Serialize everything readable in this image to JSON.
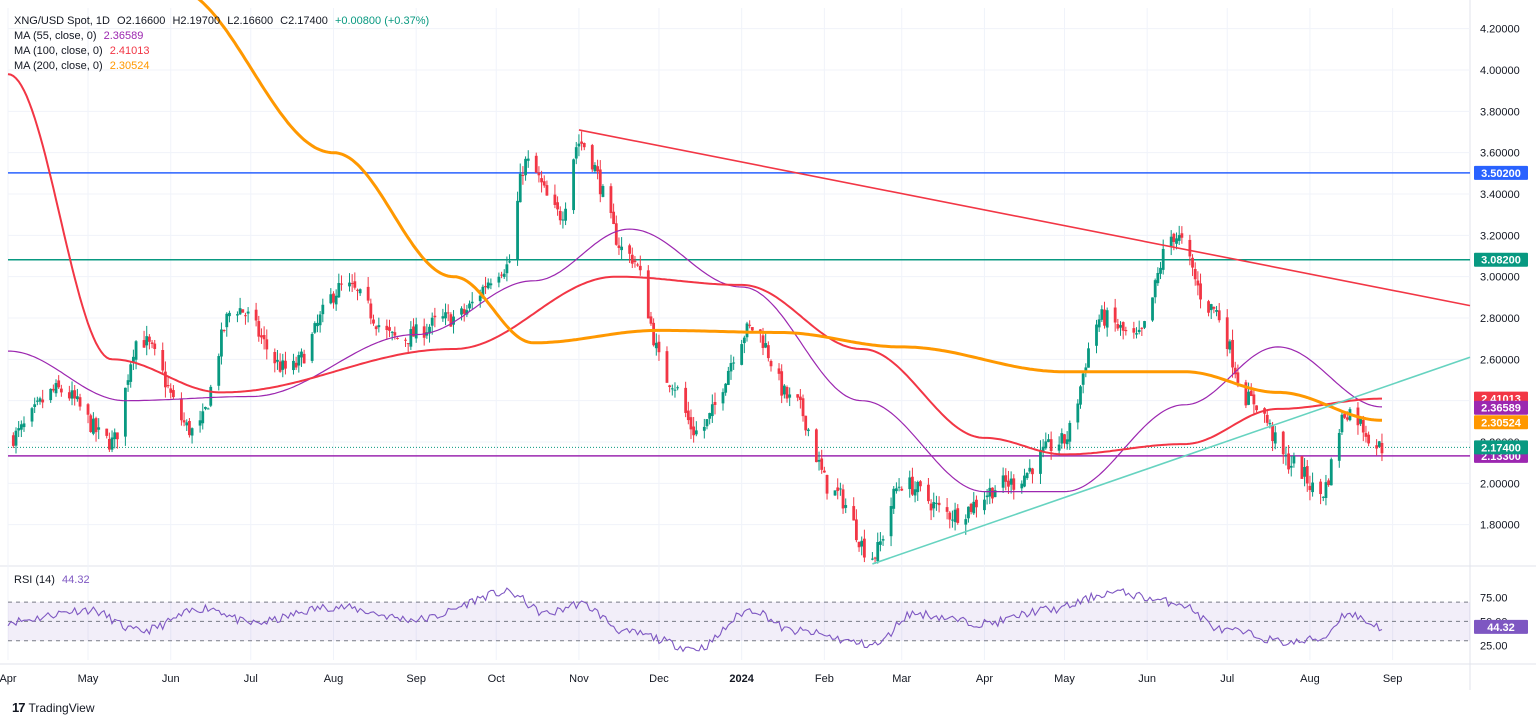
{
  "header": {
    "symbol": "XNG/USD Spot, 1D",
    "open": "O2.16600",
    "high": "H2.19700",
    "low": "L2.16600",
    "close": "C2.17400",
    "change": "+0.00800 (+0.37%)"
  },
  "indicators": [
    {
      "label": "MA (55, close, 0)",
      "value": "2.36589",
      "color": "#9c27b0"
    },
    {
      "label": "MA (100, close, 0)",
      "value": "2.41013",
      "color": "#f23645"
    },
    {
      "label": "MA (200, close, 0)",
      "value": "2.30524",
      "color": "#ff9800"
    }
  ],
  "rsi": {
    "label": "RSI (14)",
    "value": "44.32",
    "levels": [
      75,
      50,
      25
    ],
    "level_labels": [
      "75.00",
      "50.00",
      "25.00"
    ]
  },
  "brand": {
    "logo": "17",
    "name": "TradingView"
  },
  "colors": {
    "up": "#089981",
    "down": "#f23645",
    "ma55": "#9c27b0",
    "ma100": "#f23645",
    "ma200": "#ff9800",
    "trend": "#f23645",
    "support": "#66d3c0",
    "level_blue": "#2962ff",
    "level_green": "#089981",
    "level_purple": "#9c27b0",
    "rsi": "#7e57c2"
  },
  "chart_data": {
    "type": "line",
    "title": "XNG/USD Spot, 1D",
    "xlabel": "",
    "ylabel": "",
    "ylim": [
      1.6,
      4.3
    ],
    "y_ticks": [
      "4.20000",
      "4.00000",
      "3.80000",
      "3.60000",
      "3.40000",
      "3.20000",
      "3.00000",
      "2.80000",
      "2.60000",
      "2.40000",
      "2.20000",
      "2.00000",
      "1.80000"
    ],
    "x_tick_labels": [
      "Apr",
      "May",
      "Jun",
      "Jul",
      "Aug",
      "Sep",
      "Oct",
      "Nov",
      "Dec",
      "2024",
      "Feb",
      "Mar",
      "Apr",
      "May",
      "Jun",
      "Jul",
      "Aug",
      "Sep"
    ],
    "x_tick_dates": [
      "2023-04-01",
      "2023-05-01",
      "2023-06-01",
      "2023-07-01",
      "2023-08-01",
      "2023-09-01",
      "2023-10-01",
      "2023-11-01",
      "2023-12-01",
      "2024-01-01",
      "2024-02-01",
      "2024-03-01",
      "2024-04-01",
      "2024-05-01",
      "2024-06-01",
      "2024-07-01",
      "2024-08-01",
      "2024-09-01"
    ],
    "price_series": {
      "name": "",
      "x": [
        "2023-04-01",
        "2023-04-20",
        "2023-05-10",
        "2023-05-20",
        "2023-06-10",
        "2023-06-25",
        "2023-07-15",
        "2023-08-05",
        "2023-08-25",
        "2023-09-15",
        "2023-10-05",
        "2023-10-12",
        "2023-10-25",
        "2023-11-01",
        "2023-11-20",
        "2023-12-05",
        "2023-12-15",
        "2024-01-05",
        "2024-01-20",
        "2024-02-05",
        "2024-02-19",
        "2024-03-01",
        "2024-03-20",
        "2024-04-10",
        "2024-04-30",
        "2024-05-15",
        "2024-05-28",
        "2024-06-11",
        "2024-06-25",
        "2024-07-10",
        "2024-07-25",
        "2024-08-05",
        "2024-08-15",
        "2024-08-28"
      ],
      "values": [
        2.22,
        2.45,
        2.2,
        2.7,
        2.25,
        2.85,
        2.55,
        2.95,
        2.7,
        2.8,
        3.05,
        3.55,
        3.3,
        3.65,
        3.1,
        2.5,
        2.25,
        2.75,
        2.4,
        1.95,
        1.65,
        2.0,
        1.85,
        2.0,
        2.2,
        2.8,
        2.7,
        3.2,
        2.85,
        2.4,
        2.1,
        1.95,
        2.35,
        2.174
      ]
    },
    "series": [
      {
        "name": "MA (55, close, 0)",
        "x": [
          "2023-04-01",
          "2023-05-15",
          "2023-07-01",
          "2023-09-01",
          "2023-10-15",
          "2023-11-20",
          "2024-01-01",
          "2024-02-15",
          "2024-04-01",
          "2024-05-01",
          "2024-06-15",
          "2024-07-20",
          "2024-08-28"
        ],
        "values": [
          2.64,
          2.4,
          2.42,
          2.72,
          2.98,
          3.23,
          2.95,
          2.4,
          1.96,
          1.96,
          2.38,
          2.66,
          2.37
        ]
      },
      {
        "name": "MA (100, close, 0)",
        "x": [
          "2023-04-01",
          "2023-05-10",
          "2023-06-20",
          "2023-09-15",
          "2023-11-15",
          "2024-01-01",
          "2024-02-15",
          "2024-04-01",
          "2024-05-01",
          "2024-06-15",
          "2024-07-20",
          "2024-08-28"
        ],
        "values": [
          3.98,
          2.6,
          2.44,
          2.65,
          3.0,
          2.96,
          2.65,
          2.22,
          2.14,
          2.19,
          2.36,
          2.41
        ]
      },
      {
        "name": "MA (200, close, 0)",
        "x": [
          "2023-06-01",
          "2023-08-01",
          "2023-09-15",
          "2023-10-15",
          "2023-12-01",
          "2024-01-15",
          "2024-03-01",
          "2024-05-01",
          "2024-06-15",
          "2024-07-20",
          "2024-08-28"
        ],
        "values": [
          4.4,
          3.6,
          3.0,
          2.68,
          2.74,
          2.73,
          2.66,
          2.54,
          2.54,
          2.44,
          2.305
        ]
      }
    ],
    "lines": [
      {
        "type": "trendline",
        "x": [
          "2023-11-01",
          "2024-09-30"
        ],
        "values": [
          3.71,
          2.86
        ]
      },
      {
        "type": "support",
        "x": [
          "2024-02-19",
          "2024-09-30"
        ],
        "values": [
          1.61,
          2.61
        ]
      }
    ],
    "levels": [
      {
        "value": 3.502,
        "label": "3.50200"
      },
      {
        "value": 3.082,
        "label": "3.08200"
      },
      {
        "value": 2.133,
        "label": "2.13300"
      }
    ],
    "price_tags": [
      {
        "value": 2.41013,
        "label": "2.41013"
      },
      {
        "value": 2.36589,
        "label": "2.36589"
      },
      {
        "value": 2.30524,
        "label": "2.30524"
      },
      {
        "value": 2.174,
        "label": "2.17400"
      }
    ],
    "rsi_series": {
      "name": "RSI (14)",
      "x": [
        "2023-04-01",
        "2023-05-01",
        "2023-05-20",
        "2023-06-15",
        "2023-07-01",
        "2023-08-01",
        "2023-09-01",
        "2023-10-05",
        "2023-10-20",
        "2023-11-01",
        "2023-11-20",
        "2023-12-15",
        "2024-01-05",
        "2024-01-20",
        "2024-02-20",
        "2024-03-05",
        "2024-04-01",
        "2024-04-25",
        "2024-05-20",
        "2024-06-11",
        "2024-07-01",
        "2024-07-25",
        "2024-08-05",
        "2024-08-15",
        "2024-08-28"
      ],
      "values": [
        50,
        62,
        40,
        64,
        48,
        65,
        52,
        80,
        58,
        68,
        38,
        22,
        62,
        40,
        26,
        58,
        48,
        62,
        80,
        70,
        40,
        28,
        32,
        58,
        44.32
      ]
    }
  }
}
